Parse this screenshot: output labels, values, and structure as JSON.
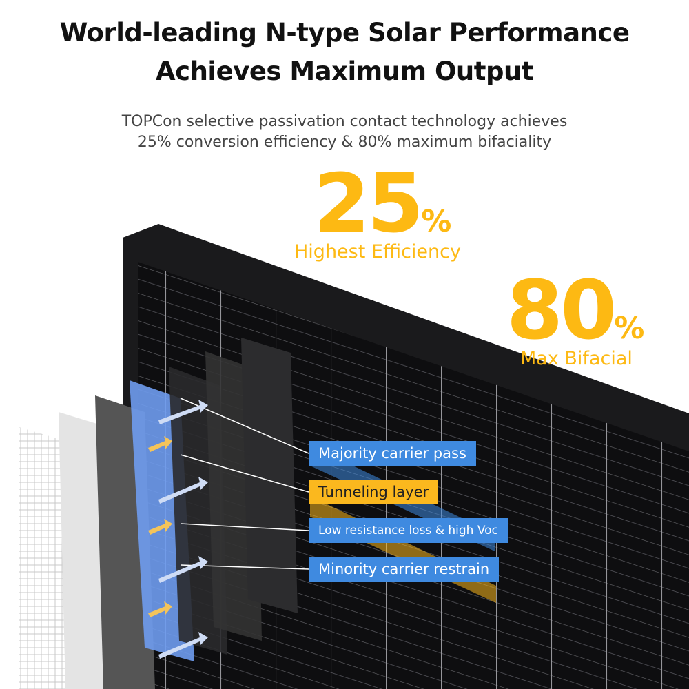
{
  "header": {
    "title_line1": "World-leading N-type Solar Performance",
    "title_line2": "Achieves Maximum Output",
    "subtitle_line1": "TOPCon selective passivation contact technology achieves",
    "subtitle_line2": "25% conversion efficiency & 80% maximum bifaciality"
  },
  "stats": [
    {
      "value": "25",
      "unit": "%",
      "label": "Highest Efficiency"
    },
    {
      "value": "80",
      "unit": "%",
      "label": "Max Bifacial"
    }
  ],
  "layers": [
    {
      "label": "Majority carrier pass",
      "color": "#3f8ae0"
    },
    {
      "label": "Tunneling layer",
      "color": "#fbb81e"
    },
    {
      "label": "Low resistance loss & high Voc",
      "color": "#3f8ae0"
    },
    {
      "label": "Minority carrier restrain",
      "color": "#3f8ae0"
    }
  ],
  "colors": {
    "accent": "#fdb913",
    "blue": "#3f8ae0",
    "panel": "#0d0d0f"
  }
}
